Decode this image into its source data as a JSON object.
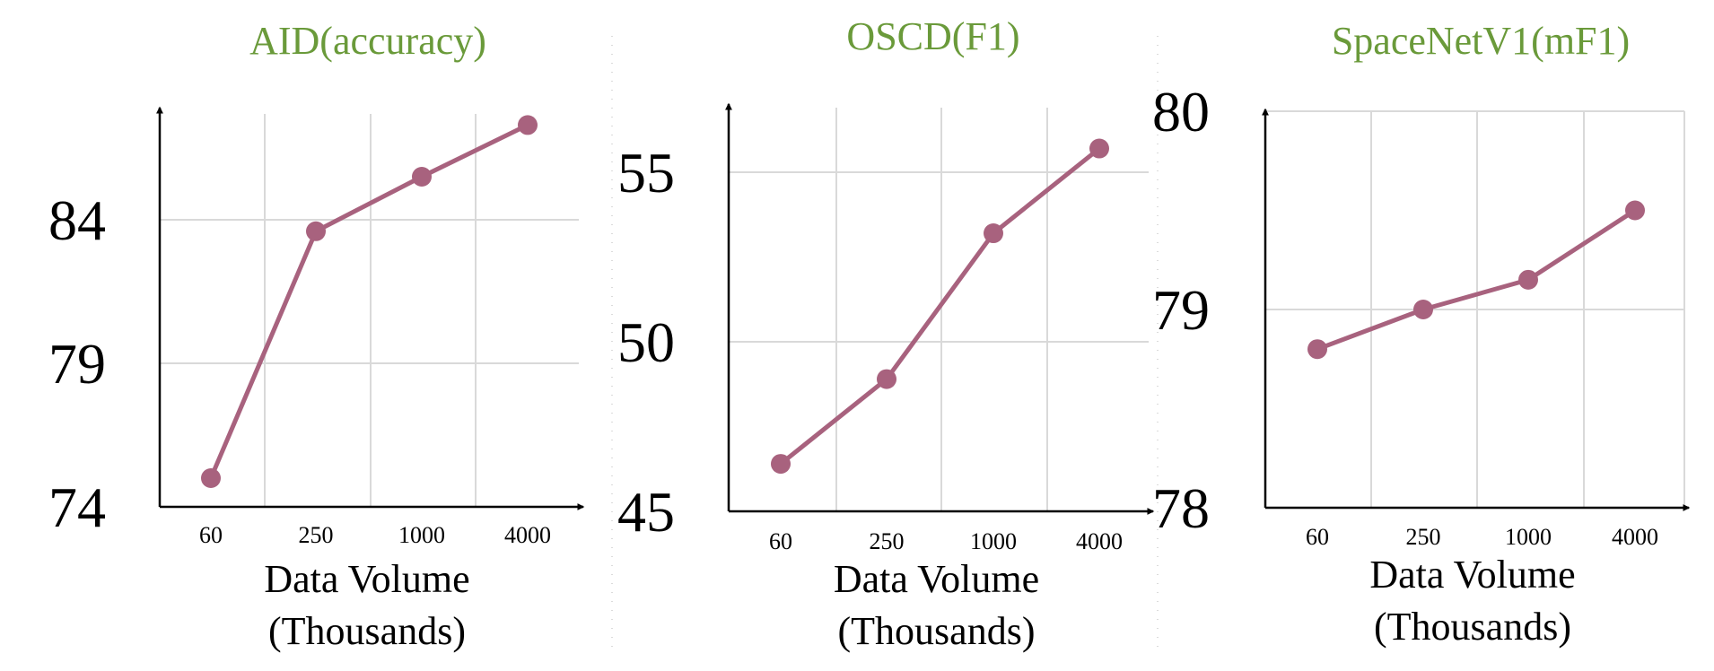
{
  "colors": {
    "series": "#a8627e",
    "title": "#6a9a3a"
  },
  "chart_data": [
    {
      "type": "line",
      "title": "AID(accuracy)",
      "xlabel_line1": "Data Volume",
      "xlabel_line2": "(Thousands)",
      "ylabel": "",
      "categories": [
        "60",
        "250",
        "1000",
        "4000"
      ],
      "values": [
        75.0,
        83.6,
        85.5,
        87.3
      ],
      "yticks": [
        74,
        79,
        84
      ],
      "ylim": [
        74,
        84
      ],
      "grid": true
    },
    {
      "type": "line",
      "title": "OSCD(F1)",
      "xlabel_line1": "Data Volume",
      "xlabel_line2": "(Thousands)",
      "ylabel": "",
      "categories": [
        "60",
        "250",
        "1000",
        "4000"
      ],
      "values": [
        46.4,
        48.9,
        53.2,
        55.7
      ],
      "yticks": [
        45,
        50,
        55
      ],
      "ylim": [
        45,
        55
      ],
      "grid": true
    },
    {
      "type": "line",
      "title": "SpaceNetV1(mF1)",
      "xlabel_line1": "Data Volume",
      "xlabel_line2": "(Thousands)",
      "ylabel": "",
      "categories": [
        "60",
        "250",
        "1000",
        "4000"
      ],
      "values": [
        78.8,
        79.0,
        79.15,
        79.5
      ],
      "yticks": [
        78,
        79,
        80
      ],
      "ylim": [
        78,
        80
      ],
      "grid": true
    }
  ]
}
